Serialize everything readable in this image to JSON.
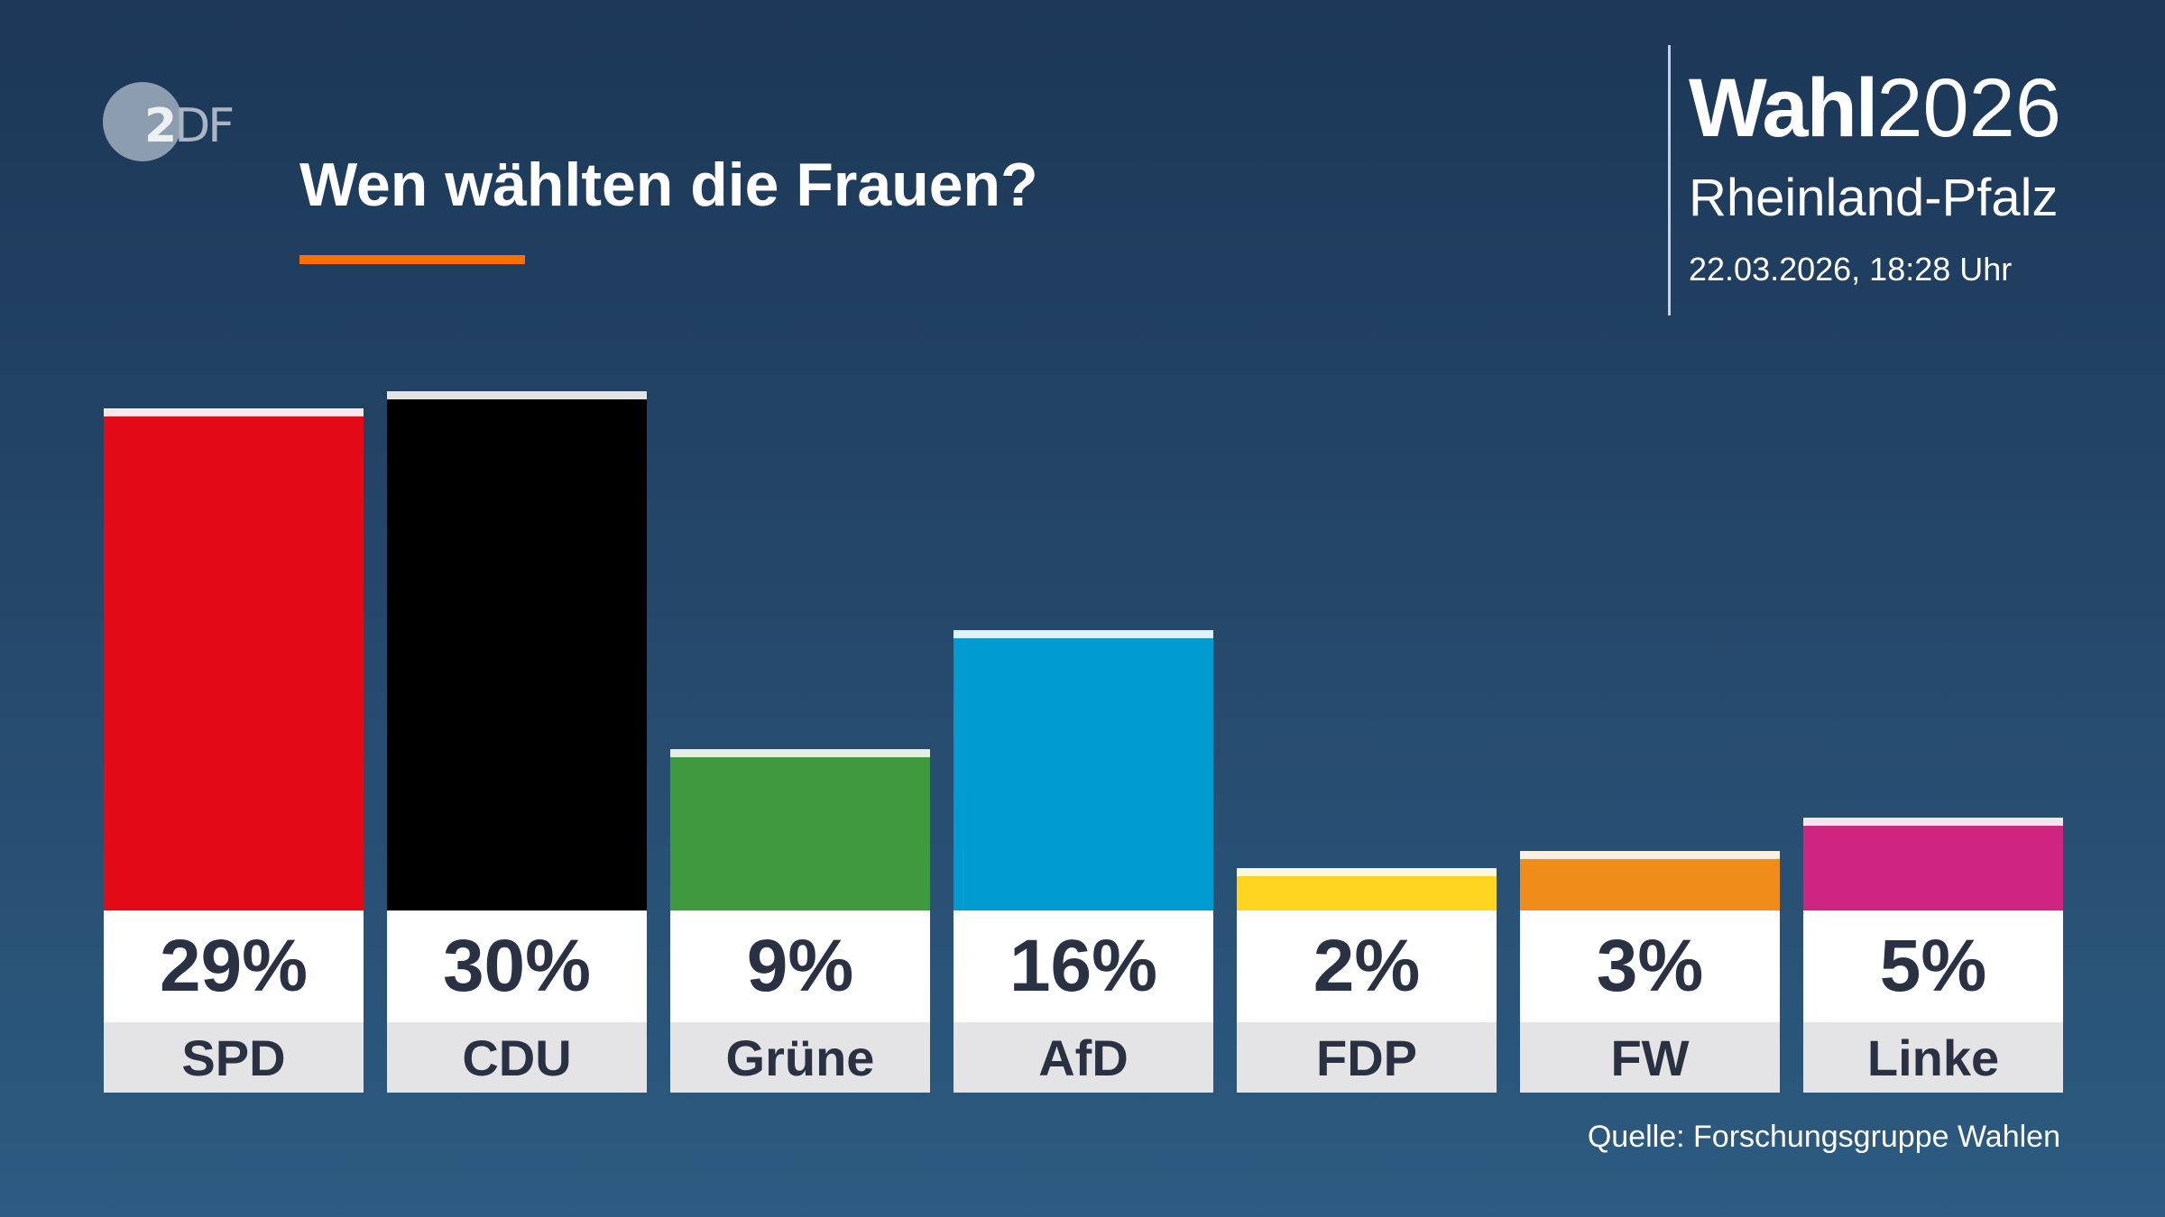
{
  "logo": {
    "text_main": "2",
    "text_rest": "DF"
  },
  "header": {
    "title": "Wen wählten die Frauen?",
    "brand_bold": "Wahl",
    "brand_year": "2026",
    "region": "Rheinland-Pfalz",
    "date": "22.03.2026, 18:28 Uhr"
  },
  "colors": {
    "accent": "#ff6e00",
    "background_top": "#1c3757",
    "background_bottom": "#2d5b81"
  },
  "chart_data": {
    "type": "bar",
    "title": "Wen wählten die Frauen?",
    "categories": [
      "SPD",
      "CDU",
      "Grüne",
      "AfD",
      "FDP",
      "FW",
      "Linke"
    ],
    "values": [
      29,
      30,
      9,
      16,
      2,
      3,
      5
    ],
    "labels": [
      "29%",
      "30%",
      "9%",
      "16%",
      "2%",
      "3%",
      "5%"
    ],
    "unit": "%",
    "colors": [
      "#e30a17",
      "#000000",
      "#3f993f",
      "#009ccf",
      "#ffd41e",
      "#f08c19",
      "#cf2580"
    ],
    "cap_colors": [
      "#fde6e8",
      "#e3e3e3",
      "#e3efe3",
      "#e0f1f9",
      "#fff8dc",
      "#fdf0e1",
      "#fae3ef"
    ],
    "grid": false,
    "ylim": [
      0,
      30
    ]
  },
  "footer": {
    "source": "Quelle: Forschungsgruppe Wahlen"
  }
}
